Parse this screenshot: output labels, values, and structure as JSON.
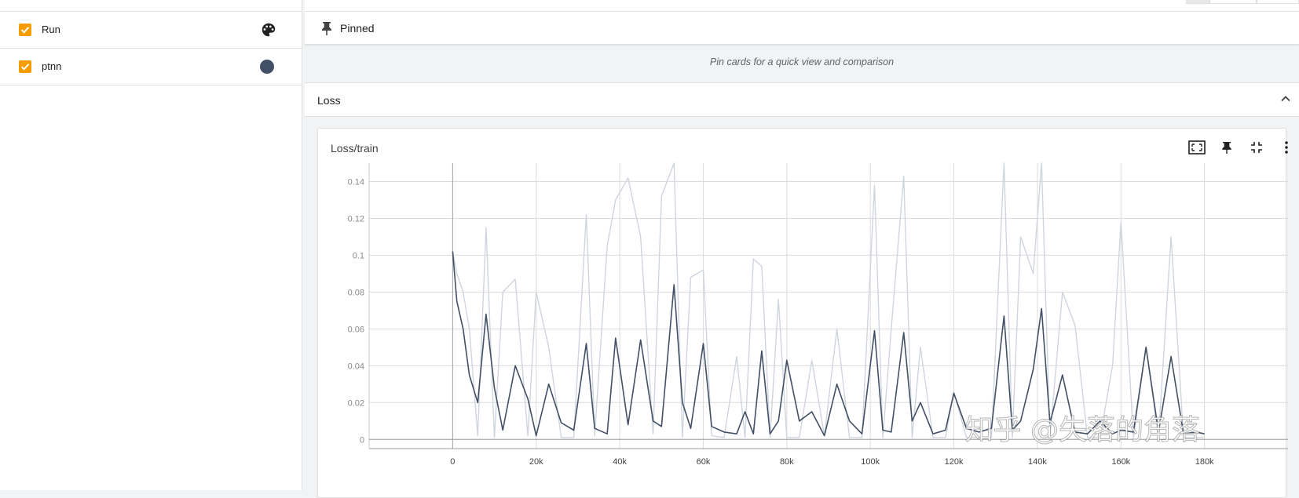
{
  "runs": [
    {
      "label": "Run",
      "checked": true,
      "icon": "palette-icon",
      "color": "#f59d00"
    },
    {
      "label": "ptnn",
      "checked": true,
      "icon": "color-dot",
      "color": "#425066"
    }
  ],
  "pinned": {
    "title": "Pinned",
    "empty_message": "Pin cards for a quick view and comparison"
  },
  "group": {
    "title": "Loss",
    "card": {
      "title": "Loss/train",
      "tools": [
        "fit-domain-icon",
        "pin-icon",
        "collapse-card-icon",
        "more-vert-icon"
      ]
    }
  },
  "watermark": "知乎 @失落的角落",
  "chart_data": {
    "type": "line",
    "title": "Loss/train",
    "xlabel": "",
    "ylabel": "",
    "x_tick_labels": [
      "0",
      "20k",
      "40k",
      "60k",
      "80k",
      "100k",
      "120k",
      "140k",
      "160k",
      "180k"
    ],
    "y_tick_labels": [
      "0",
      "0.02",
      "0.04",
      "0.06",
      "0.08",
      "0.1",
      "0.12",
      "0.14"
    ],
    "xlim": [
      -20000,
      200000
    ],
    "ylim": [
      -0.005,
      0.15
    ],
    "grid": true,
    "colors": {
      "smoothed": "#425066",
      "raw": "#cfd5de"
    },
    "series": [
      {
        "x": [
          0,
          1000,
          2500,
          4000,
          6000,
          8000,
          10000,
          12000,
          15000,
          18000,
          20000,
          23000,
          26000,
          29000,
          32000,
          34000,
          37000,
          39000,
          42000,
          45000,
          48000,
          50000,
          53000,
          55000,
          57000,
          60000,
          62000,
          65000,
          68000,
          70000,
          72000,
          74000,
          76000,
          78000,
          80000,
          83000,
          86000,
          89000,
          92000,
          95000,
          98000,
          101000,
          103000,
          105000,
          108000,
          110000,
          112000,
          115000,
          118000,
          120000,
          123000,
          126000,
          129000,
          132000,
          134000,
          136000,
          139000,
          141000,
          143000,
          146000,
          149000,
          152000,
          155000,
          158000,
          160000,
          163000,
          166000,
          169000,
          172000,
          175000,
          178000,
          180000
        ],
        "values": [
          0.102,
          0.075,
          0.06,
          0.035,
          0.02,
          0.068,
          0.028,
          0.005,
          0.04,
          0.022,
          0.002,
          0.03,
          0.009,
          0.005,
          0.052,
          0.006,
          0.003,
          0.055,
          0.008,
          0.054,
          0.01,
          0.007,
          0.084,
          0.02,
          0.006,
          0.052,
          0.007,
          0.004,
          0.003,
          0.015,
          0.003,
          0.048,
          0.003,
          0.01,
          0.043,
          0.01,
          0.015,
          0.002,
          0.03,
          0.01,
          0.003,
          0.059,
          0.005,
          0.004,
          0.058,
          0.01,
          0.02,
          0.003,
          0.005,
          0.025,
          0.006,
          0.004,
          0.006,
          0.067,
          0.005,
          0.01,
          0.038,
          0.071,
          0.009,
          0.035,
          0.004,
          0.003,
          0.01,
          0.003,
          0.005,
          0.004,
          0.05,
          0.004,
          0.045,
          0.003,
          0.004,
          0.003
        ]
      },
      {
        "x": [
          0,
          1000,
          2500,
          4000,
          6000,
          8000,
          10000,
          12000,
          15000,
          18000,
          20000,
          23000,
          26000,
          29000,
          32000,
          34000,
          37000,
          39000,
          42000,
          45000,
          48000,
          50000,
          53000,
          55000,
          57000,
          60000,
          62000,
          65000,
          68000,
          70000,
          72000,
          74000,
          76000,
          78000,
          80000,
          83000,
          86000,
          89000,
          92000,
          95000,
          98000,
          101000,
          103000,
          105000,
          108000,
          110000,
          112000,
          115000,
          118000,
          120000,
          123000,
          126000,
          129000,
          132000,
          134000,
          136000,
          139000,
          141000,
          143000,
          146000,
          149000,
          152000,
          155000,
          158000,
          160000,
          163000,
          166000,
          169000,
          172000,
          175000,
          178000,
          180000
        ],
        "values": [
          0.102,
          0.09,
          0.08,
          0.06,
          0.002,
          0.115,
          0.001,
          0.08,
          0.087,
          0.002,
          0.08,
          0.05,
          0.001,
          0.001,
          0.122,
          0.002,
          0.105,
          0.13,
          0.142,
          0.11,
          0.003,
          0.132,
          0.15,
          0.001,
          0.088,
          0.092,
          0.002,
          0.001,
          0.045,
          0.001,
          0.098,
          0.094,
          0.001,
          0.076,
          0.001,
          0.001,
          0.043,
          0.002,
          0.06,
          0.001,
          0.001,
          0.138,
          0.001,
          0.06,
          0.143,
          0.001,
          0.05,
          0.001,
          0.001,
          0.026,
          0.001,
          0.001,
          0.001,
          0.15,
          0.001,
          0.11,
          0.09,
          0.15,
          0.001,
          0.08,
          0.062,
          0.001,
          0.001,
          0.04,
          0.118,
          0.001,
          0.05,
          0.001,
          0.11,
          0.001,
          0.001,
          0.001
        ]
      }
    ]
  }
}
